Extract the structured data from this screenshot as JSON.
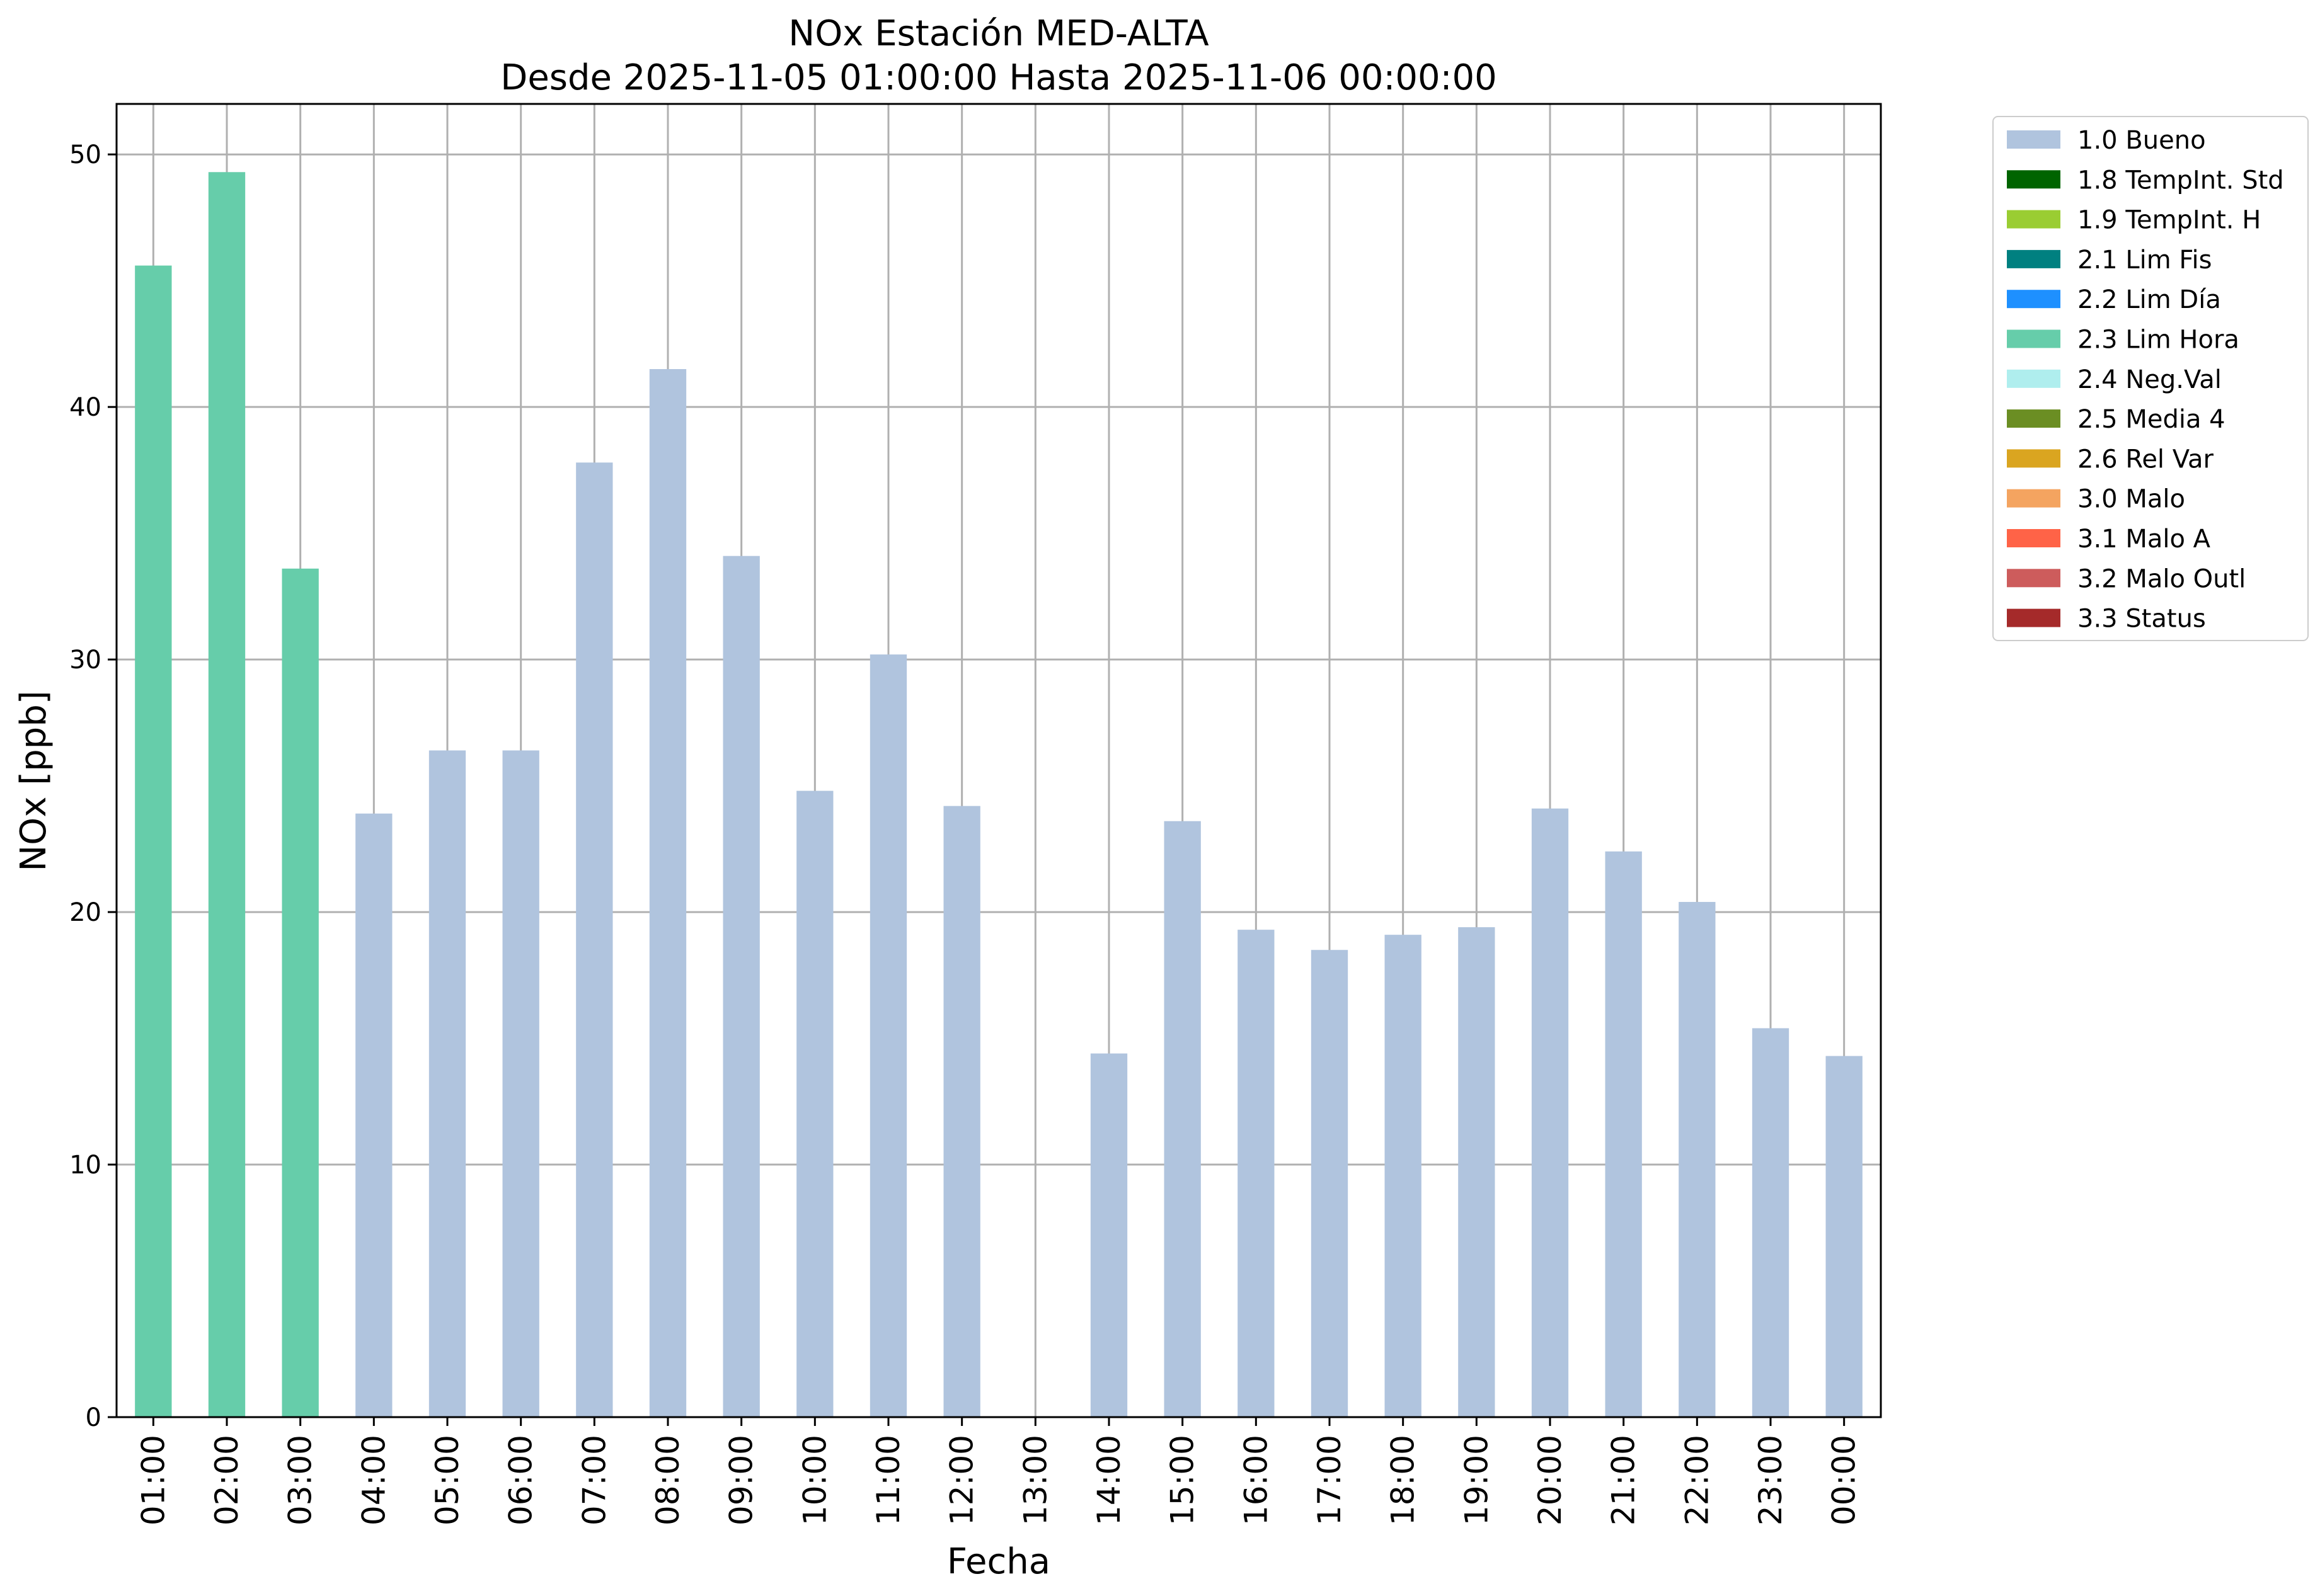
{
  "chart_data": {
    "type": "bar",
    "title": "NOx Estación MED-ALTA",
    "subtitle": "Desde 2025-11-05 01:00:00 Hasta 2025-11-06 00:00:00",
    "xlabel": "Fecha",
    "ylabel": "NOx [ppb]",
    "ylim": [
      0,
      52
    ],
    "yticks": [
      0,
      10,
      20,
      30,
      40,
      50
    ],
    "grid": true,
    "legend_position": "outside-top-right",
    "categories": [
      "01:00",
      "02:00",
      "03:00",
      "04:00",
      "05:00",
      "06:00",
      "07:00",
      "08:00",
      "09:00",
      "10:00",
      "11:00",
      "12:00",
      "13:00",
      "14:00",
      "15:00",
      "16:00",
      "17:00",
      "18:00",
      "19:00",
      "20:00",
      "21:00",
      "22:00",
      "23:00",
      "00:00"
    ],
    "values": [
      45.6,
      49.3,
      33.6,
      23.9,
      26.4,
      26.4,
      37.8,
      41.5,
      34.1,
      24.8,
      30.2,
      24.2,
      null,
      14.4,
      23.6,
      19.3,
      18.5,
      19.1,
      19.4,
      24.1,
      22.4,
      20.4,
      15.4,
      14.3
    ],
    "flags": [
      "2.3 Lim Hora",
      "2.3 Lim Hora",
      "2.3 Lim Hora",
      "1.0 Bueno",
      "1.0 Bueno",
      "1.0 Bueno",
      "1.0 Bueno",
      "1.0 Bueno",
      "1.0 Bueno",
      "1.0 Bueno",
      "1.0 Bueno",
      "1.0 Bueno",
      null,
      "1.0 Bueno",
      "1.0 Bueno",
      "1.0 Bueno",
      "1.0 Bueno",
      "1.0 Bueno",
      "1.0 Bueno",
      "1.0 Bueno",
      "1.0 Bueno",
      "1.0 Bueno",
      "1.0 Bueno",
      "1.0 Bueno"
    ],
    "legend": [
      {
        "label": "1.0 Bueno",
        "color": "#b0c4de"
      },
      {
        "label": "1.8 TempInt. Std",
        "color": "#006400"
      },
      {
        "label": "1.9 TempInt. H",
        "color": "#9acd32"
      },
      {
        "label": "2.1 Lim Fis",
        "color": "#008080"
      },
      {
        "label": "2.2 Lim Día",
        "color": "#1e90ff"
      },
      {
        "label": "2.3 Lim Hora",
        "color": "#66cdaa"
      },
      {
        "label": "2.4 Neg.Val",
        "color": "#afeeee"
      },
      {
        "label": "2.5 Media 4",
        "color": "#6b8e23"
      },
      {
        "label": "2.6 Rel Var",
        "color": "#daa520"
      },
      {
        "label": "3.0 Malo",
        "color": "#f4a460"
      },
      {
        "label": "3.1 Malo A",
        "color": "#ff6347"
      },
      {
        "label": "3.2 Malo Outl",
        "color": "#cd5c5c"
      },
      {
        "label": "3.3 Status",
        "color": "#a52a2a"
      }
    ]
  }
}
